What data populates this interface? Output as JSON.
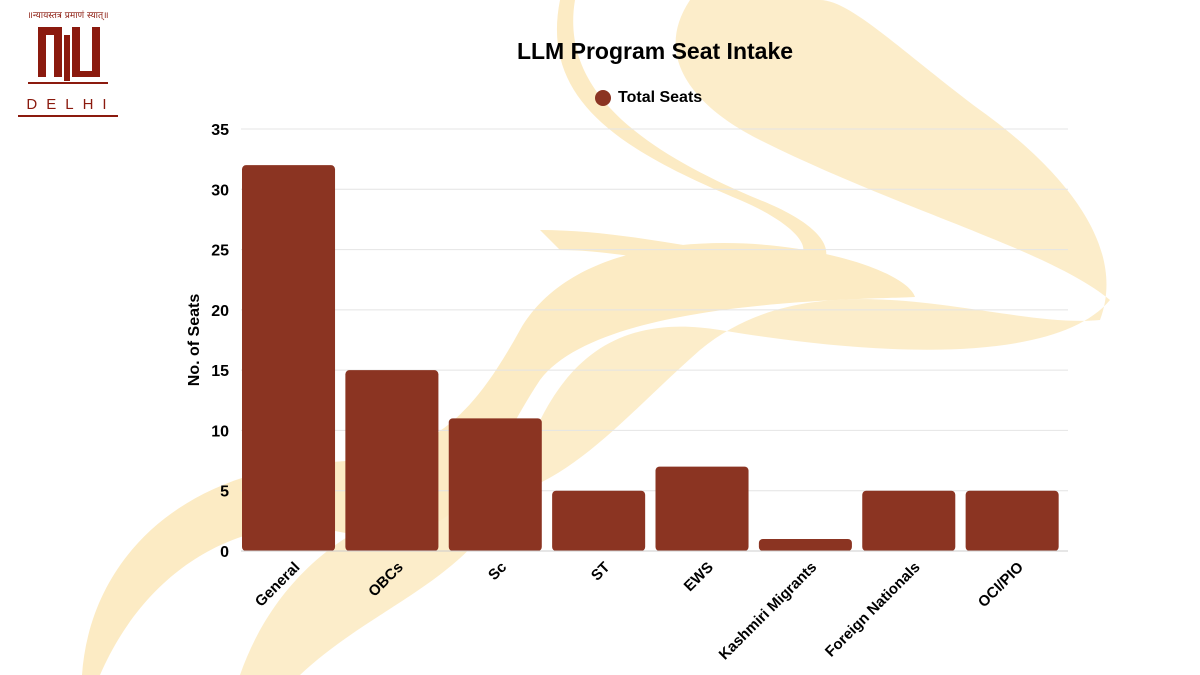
{
  "logo": {
    "motto": "॥न्यायस्तत्र प्रमाणं स्यात्॥",
    "text": "NLU",
    "subtitle": "DELHI"
  },
  "chart_data": {
    "type": "bar",
    "title": "LLM Program Seat Intake",
    "ylabel": "No. of Seats",
    "xlabel": "",
    "categories": [
      "General",
      "OBCs",
      "Sc",
      "ST",
      "EWS",
      "Kashmiri Migrants",
      "Foreign Nationals",
      "OCI/PIO"
    ],
    "series": [
      {
        "name": "Total Seats",
        "values": [
          32,
          15,
          11,
          5,
          7,
          1,
          5,
          5
        ],
        "color": "#8B3422"
      }
    ],
    "ylim": [
      0,
      35
    ],
    "yticks": [
      0,
      5,
      10,
      15,
      20,
      25,
      30,
      35
    ],
    "grid": true,
    "legend": "top"
  }
}
